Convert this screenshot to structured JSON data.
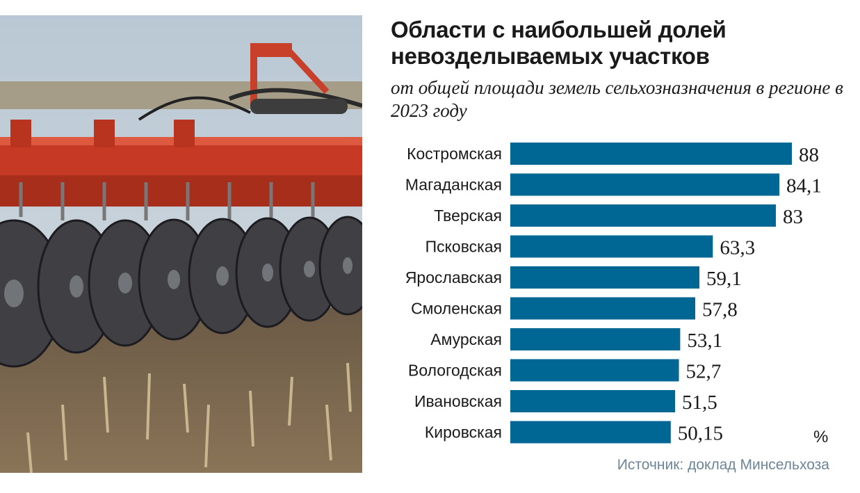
{
  "title": "Области с наибольшей долей невозделываемых участков",
  "subtitle": "от общей площади земель сельхозназначения в регионе в 2023 году",
  "unit": "%",
  "source": "Источник: доклад Минсельхоза",
  "colors": {
    "bar": "#006794",
    "source_text": "#6d8597"
  },
  "photo": {
    "icon": "disc-harrow-photo"
  },
  "chart_data": {
    "type": "bar",
    "orientation": "horizontal",
    "categories": [
      "Костромская",
      "Магаданская",
      "Тверская",
      "Псковская",
      "Ярославская",
      "Смоленская",
      "Амурская",
      "Вологодская",
      "Ивановская",
      "Кировская"
    ],
    "values": [
      88,
      84.1,
      83,
      63.3,
      59.1,
      57.8,
      53.1,
      52.7,
      51.5,
      50.15
    ],
    "value_labels": [
      "88",
      "84,1",
      "83",
      "63,3",
      "59,1",
      "57,8",
      "53,1",
      "52,7",
      "51,5",
      "50,15"
    ],
    "xlim": [
      0,
      88
    ],
    "grid": false,
    "legend": "none"
  }
}
